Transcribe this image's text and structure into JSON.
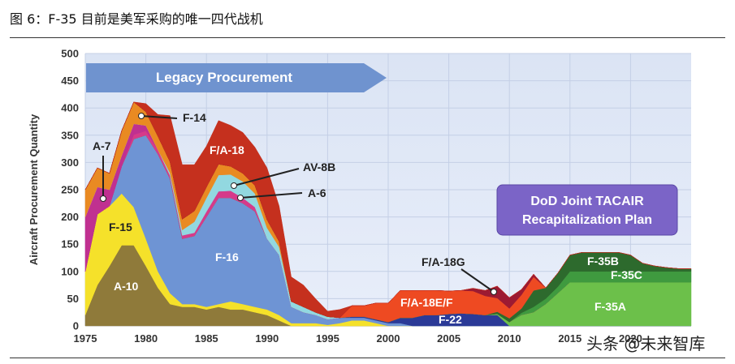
{
  "figure_title": "图 6：F-35 目前是美军采购的唯一四代战机",
  "watermark": "头条 @未来智库",
  "chart_data": {
    "type": "area",
    "ylabel": "Aircraft Procurement Quantity",
    "ylim": [
      0,
      500
    ],
    "xlim": [
      1975,
      2025
    ],
    "x_ticks": [
      "1975",
      "1980",
      "1985",
      "1990",
      "1995",
      "2000",
      "2005",
      "2010",
      "2015",
      "2020"
    ],
    "y_ticks": [
      "0",
      "50",
      "100",
      "150",
      "200",
      "250",
      "300",
      "350",
      "400",
      "450",
      "500"
    ],
    "banner": "Legacy Procurement",
    "plan_box": [
      "DoD Joint TACAIR",
      "Recapitalization Plan"
    ],
    "x": [
      1975,
      1976,
      1977,
      1978,
      1979,
      1980,
      1981,
      1982,
      1983,
      1984,
      1985,
      1986,
      1987,
      1988,
      1989,
      1990,
      1991,
      1992,
      1993,
      1994,
      1995,
      1996,
      1997,
      1998,
      1999,
      2000,
      2001,
      2002,
      2003,
      2004,
      2005,
      2006,
      2007,
      2008,
      2009,
      2010,
      2011,
      2012,
      2013,
      2014,
      2015,
      2016,
      2017,
      2018,
      2019,
      2020,
      2021,
      2022,
      2023,
      2024,
      2025
    ],
    "series": [
      {
        "name": "A-10",
        "color": "#8f7a3a",
        "values": [
          20,
          75,
          110,
          148,
          148,
          110,
          70,
          40,
          35,
          35,
          30,
          35,
          30,
          30,
          25,
          20,
          10,
          0,
          0,
          0,
          0,
          0,
          0,
          0,
          0,
          0,
          0,
          0,
          0,
          0,
          0,
          0,
          0,
          0,
          0,
          0,
          0,
          0,
          0,
          0,
          0,
          0,
          0,
          0,
          0,
          0,
          0,
          0,
          0,
          0,
          0
        ]
      },
      {
        "name": "F-15",
        "color": "#f5e12a",
        "values": [
          80,
          130,
          110,
          95,
          70,
          50,
          30,
          20,
          5,
          5,
          5,
          5,
          15,
          10,
          10,
          10,
          10,
          5,
          5,
          5,
          2,
          5,
          10,
          10,
          5,
          0,
          0,
          0,
          0,
          0,
          0,
          0,
          0,
          0,
          0,
          0,
          0,
          0,
          0,
          0,
          0,
          0,
          0,
          0,
          0,
          0,
          0,
          0,
          0,
          0,
          0
        ]
      },
      {
        "name": "F-16",
        "color": "#6e94d4",
        "values": [
          0,
          0,
          0,
          50,
          125,
          190,
          215,
          210,
          120,
          125,
          165,
          195,
          190,
          185,
          175,
          130,
          110,
          30,
          20,
          15,
          10,
          10,
          5,
          5,
          5,
          5,
          5,
          0,
          0,
          0,
          0,
          0,
          0,
          0,
          0,
          0,
          0,
          0,
          0,
          0,
          0,
          0,
          0,
          0,
          0,
          0,
          0,
          0,
          0,
          0,
          0
        ]
      },
      {
        "name": "F-22",
        "color": "#2b3a97",
        "values": [
          0,
          0,
          0,
          0,
          0,
          0,
          0,
          0,
          0,
          0,
          0,
          0,
          0,
          0,
          0,
          0,
          0,
          0,
          0,
          0,
          0,
          0,
          2,
          2,
          2,
          2,
          10,
          15,
          20,
          20,
          22,
          23,
          22,
          20,
          20,
          0,
          0,
          0,
          0,
          0,
          0,
          0,
          0,
          0,
          0,
          0,
          0,
          0,
          0,
          0,
          0
        ]
      },
      {
        "name": "F-35A",
        "color": "#6cc04a",
        "values": [
          0,
          0,
          0,
          0,
          0,
          0,
          0,
          0,
          0,
          0,
          0,
          0,
          0,
          0,
          0,
          0,
          0,
          0,
          0,
          0,
          0,
          0,
          0,
          0,
          0,
          0,
          0,
          0,
          0,
          0,
          0,
          0,
          0,
          0,
          2,
          7,
          20,
          25,
          40,
          60,
          80,
          80,
          80,
          80,
          80,
          80,
          80,
          80,
          80,
          80,
          80
        ]
      },
      {
        "name": "A-6",
        "color": "#d63a8a",
        "values": [
          0,
          0,
          0,
          0,
          8,
          8,
          8,
          6,
          6,
          6,
          10,
          12,
          13,
          10,
          8,
          0,
          0,
          0,
          0,
          0,
          0,
          0,
          0,
          0,
          0,
          0,
          0,
          0,
          0,
          0,
          0,
          0,
          0,
          0,
          0,
          0,
          0,
          0,
          0,
          0,
          0,
          0,
          0,
          0,
          0,
          0,
          0,
          0,
          0,
          0,
          0
        ]
      },
      {
        "name": "A-7",
        "color": "#c03090",
        "values": [
          100,
          50,
          30,
          20,
          20,
          10,
          0,
          0,
          0,
          0,
          0,
          0,
          0,
          0,
          0,
          0,
          0,
          0,
          0,
          0,
          0,
          0,
          0,
          0,
          0,
          0,
          0,
          0,
          0,
          0,
          0,
          0,
          0,
          0,
          0,
          0,
          0,
          0,
          0,
          0,
          0,
          0,
          0,
          0,
          0,
          0,
          0,
          0,
          0,
          0,
          0
        ]
      },
      {
        "name": "AV-8B",
        "color": "#92d8e0",
        "values": [
          0,
          0,
          0,
          0,
          0,
          0,
          0,
          5,
          10,
          20,
          25,
          30,
          30,
          30,
          25,
          20,
          15,
          10,
          10,
          5,
          5,
          0,
          0,
          0,
          0,
          0,
          0,
          0,
          0,
          0,
          0,
          0,
          0,
          0,
          0,
          0,
          0,
          0,
          0,
          0,
          0,
          0,
          0,
          0,
          0,
          0,
          0,
          0,
          0,
          0,
          0
        ]
      },
      {
        "name": "F-14",
        "color": "#e98a22",
        "values": [
          50,
          35,
          30,
          45,
          40,
          25,
          25,
          20,
          20,
          20,
          20,
          20,
          15,
          15,
          15,
          15,
          10,
          0,
          0,
          0,
          0,
          0,
          0,
          0,
          0,
          0,
          0,
          0,
          0,
          0,
          0,
          0,
          0,
          0,
          0,
          0,
          0,
          0,
          0,
          0,
          0,
          0,
          0,
          0,
          0,
          0,
          0,
          0,
          0,
          0,
          0
        ]
      },
      {
        "name": "F-35C",
        "color": "#3f9a3f",
        "values": [
          0,
          0,
          0,
          0,
          0,
          0,
          0,
          0,
          0,
          0,
          0,
          0,
          0,
          0,
          0,
          0,
          0,
          0,
          0,
          0,
          0,
          0,
          0,
          0,
          0,
          0,
          0,
          0,
          0,
          0,
          0,
          0,
          0,
          0,
          0,
          0,
          4,
          10,
          10,
          12,
          20,
          20,
          20,
          20,
          20,
          20,
          20,
          20,
          20,
          20,
          20
        ]
      },
      {
        "name": "F-35B",
        "color": "#2d6a2d",
        "values": [
          0,
          0,
          0,
          0,
          0,
          0,
          0,
          0,
          0,
          0,
          0,
          0,
          0,
          0,
          0,
          0,
          0,
          0,
          0,
          0,
          0,
          0,
          0,
          0,
          0,
          0,
          0,
          0,
          0,
          0,
          0,
          0,
          0,
          0,
          4,
          7,
          8,
          30,
          20,
          25,
          30,
          35,
          35,
          35,
          35,
          30,
          15,
          10,
          7,
          5,
          5
        ]
      },
      {
        "name": "F/A-18E/F",
        "color": "#ee4a22",
        "values": [
          0,
          0,
          0,
          0,
          0,
          0,
          0,
          0,
          0,
          0,
          0,
          0,
          0,
          0,
          0,
          0,
          0,
          0,
          0,
          0,
          0,
          0,
          20,
          20,
          30,
          35,
          50,
          50,
          45,
          45,
          42,
          42,
          42,
          35,
          25,
          18,
          25,
          25,
          0,
          0,
          0,
          0,
          0,
          0,
          0,
          0,
          0,
          0,
          0,
          0,
          0
        ]
      },
      {
        "name": "F/A-18G",
        "color": "#9c1a32",
        "values": [
          0,
          0,
          0,
          0,
          0,
          0,
          0,
          0,
          0,
          0,
          0,
          0,
          0,
          0,
          0,
          0,
          0,
          0,
          0,
          0,
          0,
          0,
          0,
          0,
          0,
          0,
          0,
          0,
          0,
          0,
          0,
          0,
          5,
          10,
          22,
          20,
          10,
          5,
          0,
          0,
          0,
          0,
          0,
          0,
          0,
          0,
          0,
          0,
          0,
          0,
          0
        ]
      },
      {
        "name": "F/A-18",
        "color": "#c5301e",
        "values": [
          0,
          0,
          0,
          0,
          0,
          15,
          40,
          85,
          100,
          85,
          75,
          80,
          75,
          75,
          70,
          95,
          65,
          45,
          40,
          25,
          10,
          15,
          0,
          0,
          0,
          0,
          0,
          0,
          0,
          0,
          0,
          0,
          0,
          0,
          0,
          0,
          0,
          0,
          0,
          0,
          0,
          0,
          0,
          0,
          0,
          0,
          0,
          0,
          0,
          0,
          0
        ]
      }
    ],
    "labels": {
      "legacy": "Legacy Procurement",
      "a7": "A-7",
      "f15": "F-15",
      "a10": "A-10",
      "f16": "F-16",
      "f14": "F-14",
      "fa18": "F/A-18",
      "av8b": "AV-8B",
      "a6": "A-6",
      "fa18g": "F/A-18G",
      "fa18ef": "F/A-18E/F",
      "f22": "F-22",
      "f35a": "F-35A",
      "f35b": "F-35B",
      "f35c": "F-35C",
      "plan1": "DoD Joint TACAIR",
      "plan2": "Recapitalization Plan"
    }
  }
}
